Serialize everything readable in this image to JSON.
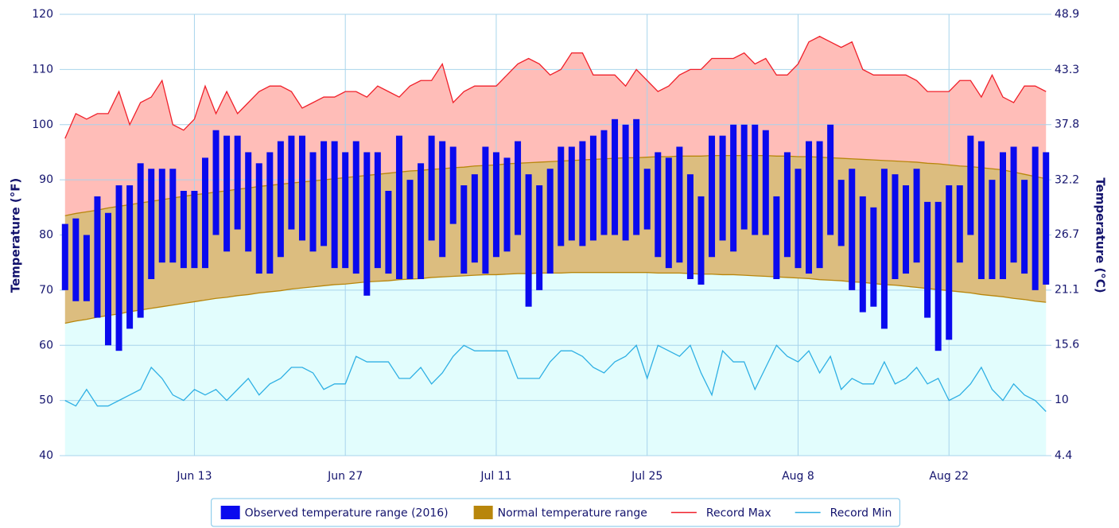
{
  "chart_data": {
    "type": "temperature-range",
    "y_label": "Temperature (°F)",
    "y2_label": "Temperature (°C)",
    "ylim": [
      40,
      120
    ],
    "yticks": [
      40,
      50,
      60,
      70,
      80,
      90,
      100,
      110,
      120
    ],
    "y2lim": [
      4.4,
      48.9
    ],
    "y2ticks": [
      4.4,
      10,
      15.6,
      21.1,
      26.7,
      32.2,
      37.8,
      43.3,
      48.9
    ],
    "grid": true,
    "legend": "bottom",
    "categories": [
      null,
      null,
      null,
      null,
      null,
      null,
      null,
      null,
      null,
      null,
      null,
      null,
      "Jun 13",
      null,
      null,
      null,
      null,
      null,
      null,
      null,
      null,
      null,
      null,
      null,
      null,
      null,
      "Jun 27",
      null,
      null,
      null,
      null,
      null,
      null,
      null,
      null,
      null,
      null,
      null,
      null,
      null,
      "Jul 11",
      null,
      null,
      null,
      null,
      null,
      null,
      null,
      null,
      null,
      null,
      null,
      null,
      null,
      "Jul 25",
      null,
      null,
      null,
      null,
      null,
      null,
      null,
      null,
      null,
      null,
      null,
      null,
      null,
      "Aug 8",
      null,
      null,
      null,
      null,
      null,
      null,
      null,
      null,
      null,
      null,
      null,
      null,
      null,
      "Aug 22",
      null,
      null,
      null,
      null,
      null,
      null,
      null,
      null,
      null
    ],
    "series": [
      {
        "name": "Observed temperature range (2016)",
        "type": "columnrange",
        "color": "#0a0aee",
        "high": [
          82,
          83,
          80,
          87,
          84,
          89,
          89,
          93,
          92,
          92,
          92,
          88,
          88,
          94,
          99,
          98,
          98,
          95,
          93,
          95,
          97,
          98,
          98,
          95,
          97,
          97,
          95,
          97,
          95,
          95,
          88,
          98,
          90,
          93,
          98,
          97,
          96,
          89,
          91,
          96,
          95,
          94,
          97,
          91,
          89,
          92,
          96,
          96,
          97,
          98,
          99,
          101,
          100,
          101,
          92,
          95,
          94,
          96,
          91,
          87,
          98,
          98,
          100,
          100,
          100,
          99,
          87,
          95,
          92,
          97,
          97,
          100,
          90,
          92,
          87,
          85,
          92,
          91,
          89,
          92,
          86,
          86,
          89,
          89,
          98,
          97,
          90,
          95,
          96,
          90,
          96,
          95
        ],
        "low": [
          70,
          68,
          68,
          65,
          60,
          59,
          63,
          65,
          72,
          75,
          75,
          74,
          74,
          74,
          80,
          77,
          81,
          77,
          73,
          73,
          76,
          81,
          79,
          77,
          78,
          74,
          74,
          73,
          69,
          74,
          73,
          72,
          72,
          72,
          79,
          76,
          82,
          73,
          75,
          73,
          76,
          77,
          80,
          67,
          70,
          73,
          78,
          79,
          78,
          79,
          80,
          80,
          79,
          80,
          81,
          76,
          74,
          75,
          72,
          71,
          76,
          79,
          77,
          81,
          80,
          80,
          72,
          76,
          74,
          73,
          74,
          80,
          78,
          70,
          66,
          67,
          63,
          72,
          73,
          75,
          65,
          59,
          61,
          75,
          80,
          72,
          72,
          72,
          75,
          73,
          70,
          71
        ]
      },
      {
        "name": "Normal temperature range",
        "type": "arearange",
        "color": "#b8860b",
        "fill": "#dcbd7f",
        "high": [
          83.5,
          83.9,
          84.2,
          84.5,
          84.9,
          85.2,
          85.5,
          85.8,
          86.1,
          86.4,
          86.7,
          87.0,
          87.3,
          87.5,
          87.8,
          88.0,
          88.3,
          88.5,
          88.8,
          89.0,
          89.2,
          89.4,
          89.6,
          89.8,
          90.0,
          90.2,
          90.4,
          90.6,
          90.8,
          91.0,
          91.2,
          91.4,
          91.6,
          91.7,
          91.9,
          92.0,
          92.2,
          92.3,
          92.5,
          92.6,
          92.7,
          92.9,
          93.0,
          93.1,
          93.2,
          93.3,
          93.4,
          93.5,
          93.6,
          93.7,
          93.8,
          93.9,
          94.0,
          94.0,
          94.1,
          94.2,
          94.2,
          94.3,
          94.3,
          94.3,
          94.4,
          94.4,
          94.4,
          94.4,
          94.4,
          94.4,
          94.3,
          94.3,
          94.2,
          94.2,
          94.1,
          94.0,
          93.9,
          93.8,
          93.7,
          93.6,
          93.5,
          93.4,
          93.3,
          93.2,
          93.0,
          92.9,
          92.7,
          92.5,
          92.4,
          92.2,
          92.0,
          91.8,
          91.4,
          91.0,
          90.6,
          90.2
        ],
        "low": [
          64.0,
          64.4,
          64.7,
          65.1,
          65.4,
          65.7,
          66.1,
          66.4,
          66.7,
          67.0,
          67.3,
          67.6,
          67.9,
          68.2,
          68.5,
          68.7,
          69.0,
          69.2,
          69.5,
          69.7,
          69.9,
          70.2,
          70.4,
          70.6,
          70.8,
          71.0,
          71.1,
          71.3,
          71.5,
          71.6,
          71.7,
          71.9,
          72.0,
          72.1,
          72.3,
          72.4,
          72.5,
          72.6,
          72.7,
          72.8,
          72.8,
          72.9,
          73.0,
          73.0,
          73.1,
          73.1,
          73.1,
          73.2,
          73.2,
          73.2,
          73.2,
          73.2,
          73.2,
          73.2,
          73.2,
          73.1,
          73.1,
          73.1,
          73.0,
          72.9,
          72.9,
          72.8,
          72.8,
          72.7,
          72.6,
          72.5,
          72.4,
          72.3,
          72.2,
          72.1,
          71.9,
          71.8,
          71.7,
          71.5,
          71.4,
          71.2,
          71.0,
          70.9,
          70.7,
          70.5,
          70.3,
          70.1,
          69.9,
          69.7,
          69.5,
          69.2,
          69.0,
          68.8,
          68.5,
          68.3,
          68.0,
          67.8
        ]
      },
      {
        "name": "Record Max",
        "type": "line",
        "color": "#f0202a",
        "fill": "#ffbdb8",
        "values": [
          97.5,
          102,
          101,
          102,
          102,
          106,
          100,
          104,
          105,
          108,
          100,
          99,
          101,
          107,
          102,
          106,
          102,
          104,
          106,
          107,
          107,
          106,
          103,
          104,
          105,
          105,
          106,
          106,
          105,
          107,
          106,
          105,
          107,
          108,
          108,
          111,
          104,
          106,
          107,
          107,
          107,
          109,
          111,
          112,
          111,
          109,
          110,
          113,
          113,
          109,
          109,
          109,
          107,
          110,
          108,
          106,
          107,
          109,
          110,
          110,
          112,
          112,
          112,
          113,
          111,
          112,
          109,
          109,
          111,
          115,
          116,
          115,
          114,
          115,
          110,
          109,
          109,
          109,
          109,
          108,
          106,
          106,
          106,
          108,
          108,
          105,
          109,
          105,
          104,
          107,
          107,
          106
        ]
      },
      {
        "name": "Record Min",
        "type": "line",
        "color": "#2fb0e4",
        "fill": "#e2fdfd",
        "values": [
          50,
          49,
          52,
          49,
          49,
          50,
          51,
          52,
          56,
          54,
          51,
          50,
          52,
          51,
          52,
          50,
          52,
          54,
          51,
          53,
          54,
          56,
          56,
          55,
          52,
          53,
          53,
          58,
          57,
          57,
          57,
          54,
          54,
          56,
          53,
          55,
          58,
          60,
          59,
          59,
          59,
          59,
          54,
          54,
          54,
          57,
          59,
          59,
          58,
          56,
          55,
          57,
          58,
          60,
          54,
          60,
          59,
          58,
          60,
          55,
          51,
          59,
          57,
          57,
          52,
          56,
          60,
          58,
          57,
          59,
          55,
          58,
          52,
          54,
          53,
          53,
          57,
          53,
          54,
          56,
          53,
          54,
          50,
          51,
          53,
          56,
          52,
          50,
          53,
          51,
          50,
          48
        ]
      }
    ]
  }
}
